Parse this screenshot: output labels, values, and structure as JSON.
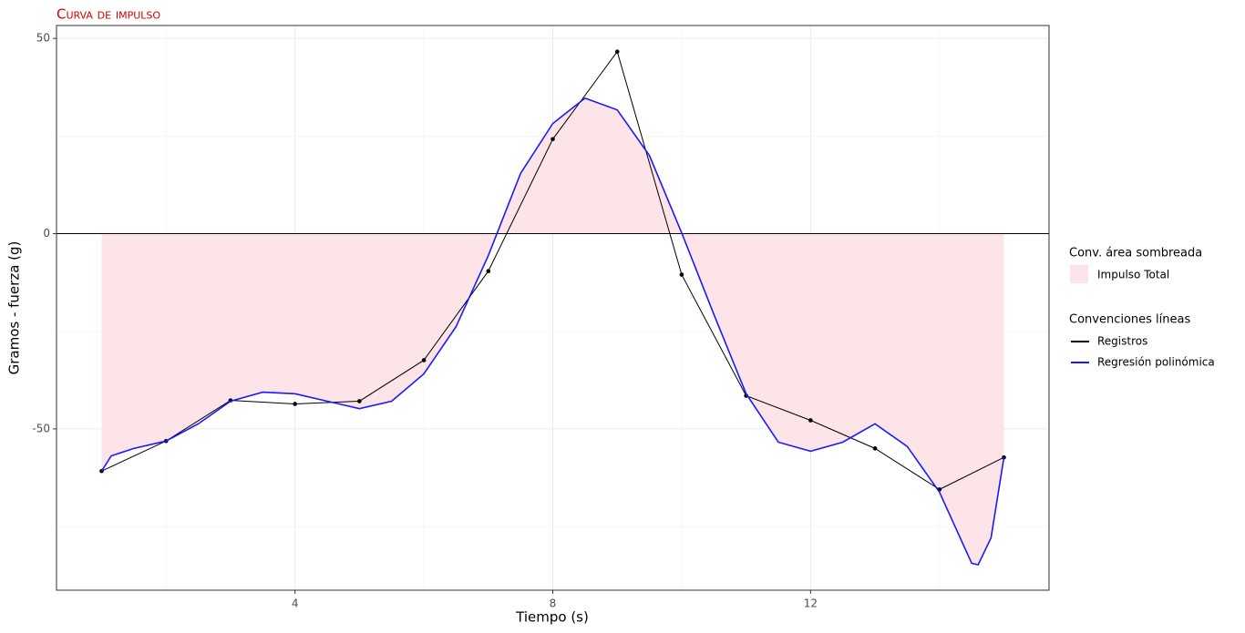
{
  "chart_data": {
    "type": "line",
    "title": "Curva de impulso",
    "x_label": "Tiempo (s)",
    "y_label": "Gramos - fuerza (g)",
    "xlim": [
      0.3,
      15.7
    ],
    "ylim": [
      -91.3,
      53.3
    ],
    "xticks": [
      4,
      8,
      12
    ],
    "yticks": [
      -50,
      0,
      50
    ],
    "xminor": [
      2,
      6,
      10,
      14
    ],
    "yminor": [
      -75,
      -25,
      25
    ],
    "grid": true,
    "hline": 0,
    "area": {
      "name": "Impulso Total",
      "color": "#fde4e8",
      "legend_title": "Conv. área sombreada"
    },
    "lines_legend_title": "Convenciones líneas",
    "series": [
      {
        "name": "Registros",
        "color": "#000000",
        "points": true,
        "x": [
          1,
          2,
          3,
          4,
          5,
          6,
          7,
          8,
          9,
          10,
          11,
          12,
          13,
          14,
          15
        ],
        "values": [
          -60.8,
          -53.1,
          -42.7,
          -43.6,
          -42.9,
          -32.4,
          -9.6,
          24.2,
          46.6,
          -10.5,
          -41.5,
          -47.8,
          -55.0,
          -65.5,
          -57.3
        ]
      },
      {
        "name": "Regresión polinómica",
        "color": "#1a1aff",
        "points": false,
        "shade": true,
        "x": [
          1,
          1.15,
          1.5,
          2,
          2.5,
          3,
          3.5,
          4,
          4.5,
          5,
          5.5,
          6,
          6.5,
          7,
          7.5,
          8,
          8.5,
          9,
          9.5,
          10,
          10.5,
          11,
          11.5,
          12,
          12.5,
          13,
          13.5,
          14,
          14.5,
          14.6,
          14.8,
          15
        ],
        "values": [
          -60.8,
          -56.9,
          -55.0,
          -53.1,
          -48.7,
          -42.9,
          -40.6,
          -41.0,
          -42.9,
          -44.8,
          -42.9,
          -35.9,
          -23.8,
          -5.6,
          15.4,
          28.2,
          34.7,
          31.7,
          20.0,
          0.2,
          -20.7,
          -41.0,
          -53.4,
          -55.7,
          -53.4,
          -48.7,
          -54.5,
          -66.2,
          -84.4,
          -84.8,
          -77.9,
          -57.3
        ]
      }
    ]
  }
}
